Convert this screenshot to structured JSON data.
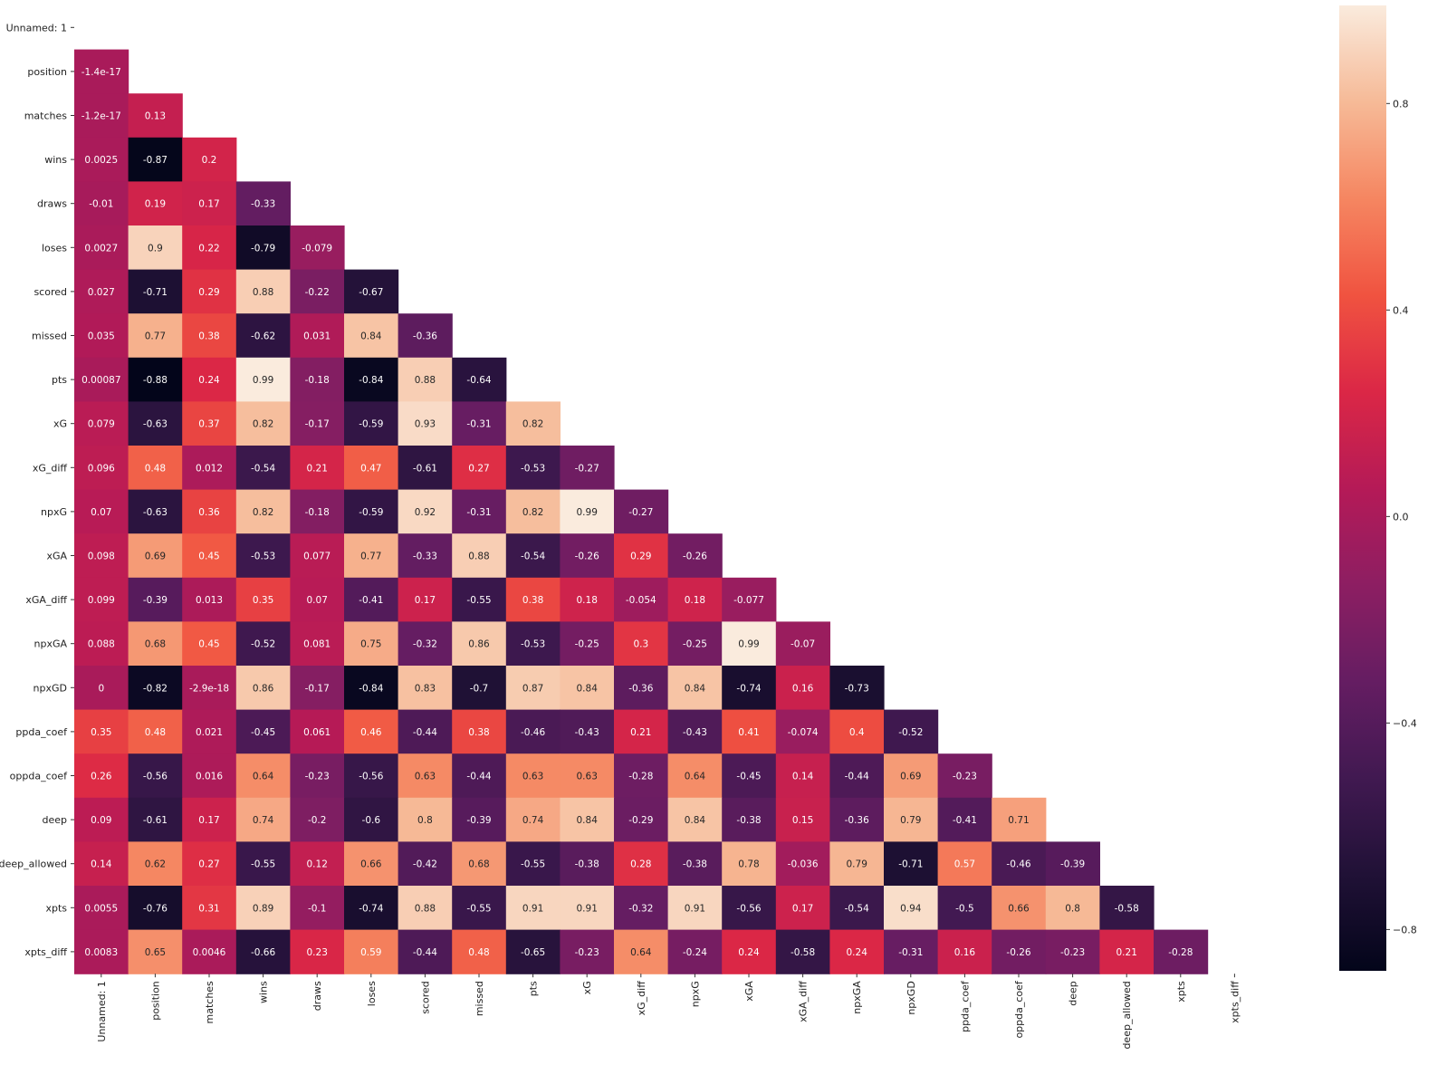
{
  "chart_data": {
    "type": "heatmap",
    "title": "",
    "xlabel": "",
    "ylabel": "",
    "labels": [
      "Unnamed: 1",
      "position",
      "matches",
      "wins",
      "draws",
      "loses",
      "scored",
      "missed",
      "pts",
      "xG",
      "xG_diff",
      "npxG",
      "xGA",
      "xGA_diff",
      "npxGA",
      "npxGD",
      "ppda_coef",
      "oppda_coef",
      "deep",
      "deep_allowed",
      "xpts",
      "xpts_diff"
    ],
    "mask": "upper triangle including diagonal",
    "annotations": [
      [],
      [
        "-1.4e-17"
      ],
      [
        "-1.2e-17",
        "0.13"
      ],
      [
        "0.0025",
        "-0.87",
        "0.2"
      ],
      [
        "-0.01",
        "0.19",
        "0.17",
        "-0.33"
      ],
      [
        "0.0027",
        "0.9",
        "0.22",
        "-0.79",
        "-0.079"
      ],
      [
        "0.027",
        "-0.71",
        "0.29",
        "0.88",
        "-0.22",
        "-0.67"
      ],
      [
        "0.035",
        "0.77",
        "0.38",
        "-0.62",
        "0.031",
        "0.84",
        "-0.36"
      ],
      [
        "0.00087",
        "-0.88",
        "0.24",
        "0.99",
        "-0.18",
        "-0.84",
        "0.88",
        "-0.64"
      ],
      [
        "0.079",
        "-0.63",
        "0.37",
        "0.82",
        "-0.17",
        "-0.59",
        "0.93",
        "-0.31",
        "0.82"
      ],
      [
        "0.096",
        "0.48",
        "0.012",
        "-0.54",
        "0.21",
        "0.47",
        "-0.61",
        "0.27",
        "-0.53",
        "-0.27"
      ],
      [
        "0.07",
        "-0.63",
        "0.36",
        "0.82",
        "-0.18",
        "-0.59",
        "0.92",
        "-0.31",
        "0.82",
        "0.99",
        "-0.27"
      ],
      [
        "0.098",
        "0.69",
        "0.45",
        "-0.53",
        "0.077",
        "0.77",
        "-0.33",
        "0.88",
        "-0.54",
        "-0.26",
        "0.29",
        "-0.26"
      ],
      [
        "0.099",
        "-0.39",
        "0.013",
        "0.35",
        "0.07",
        "-0.41",
        "0.17",
        "-0.55",
        "0.38",
        "0.18",
        "-0.054",
        "0.18",
        "-0.077"
      ],
      [
        "0.088",
        "0.68",
        "0.45",
        "-0.52",
        "0.081",
        "0.75",
        "-0.32",
        "0.86",
        "-0.53",
        "-0.25",
        "0.3",
        "-0.25",
        "0.99",
        "-0.07"
      ],
      [
        "0",
        "-0.82",
        "-2.9e-18",
        "0.86",
        "-0.17",
        "-0.84",
        "0.83",
        "-0.7",
        "0.87",
        "0.84",
        "-0.36",
        "0.84",
        "-0.74",
        "0.16",
        "-0.73"
      ],
      [
        "0.35",
        "0.48",
        "0.021",
        "-0.45",
        "0.061",
        "0.46",
        "-0.44",
        "0.38",
        "-0.46",
        "-0.43",
        "0.21",
        "-0.43",
        "0.41",
        "-0.074",
        "0.4",
        "-0.52"
      ],
      [
        "0.26",
        "-0.56",
        "0.016",
        "0.64",
        "-0.23",
        "-0.56",
        "0.63",
        "-0.44",
        "0.63",
        "0.63",
        "-0.28",
        "0.64",
        "-0.45",
        "0.14",
        "-0.44",
        "0.69",
        "-0.23"
      ],
      [
        "0.09",
        "-0.61",
        "0.17",
        "0.74",
        "-0.2",
        "-0.6",
        "0.8",
        "-0.39",
        "0.74",
        "0.84",
        "-0.29",
        "0.84",
        "-0.38",
        "0.15",
        "-0.36",
        "0.79",
        "-0.41",
        "0.71"
      ],
      [
        "0.14",
        "0.62",
        "0.27",
        "-0.55",
        "0.12",
        "0.66",
        "-0.42",
        "0.68",
        "-0.55",
        "-0.38",
        "0.28",
        "-0.38",
        "0.78",
        "-0.036",
        "0.79",
        "-0.71",
        "0.57",
        "-0.46",
        "-0.39"
      ],
      [
        "0.0055",
        "-0.76",
        "0.31",
        "0.89",
        "-0.1",
        "-0.74",
        "0.88",
        "-0.55",
        "0.91",
        "0.91",
        "-0.32",
        "0.91",
        "-0.56",
        "0.17",
        "-0.54",
        "0.94",
        "-0.5",
        "0.66",
        "0.8",
        "-0.58"
      ],
      [
        "0.0083",
        "0.65",
        "0.0046",
        "-0.66",
        "0.23",
        "0.59",
        "-0.44",
        "0.48",
        "-0.65",
        "-0.23",
        "0.64",
        "-0.24",
        "0.24",
        "-0.58",
        "0.24",
        "-0.31",
        "0.16",
        "-0.26",
        "-0.23",
        "0.21",
        "-0.28"
      ]
    ],
    "colormap": "rocket",
    "vmin": -0.88,
    "vmax": 0.99,
    "colorbar_ticks": [
      "0.8",
      "0.4",
      "0.0",
      "−0.4",
      "−0.8"
    ],
    "colorbar_tick_values": [
      0.8,
      0.4,
      0.0,
      -0.4,
      -0.8
    ],
    "grid": false
  }
}
